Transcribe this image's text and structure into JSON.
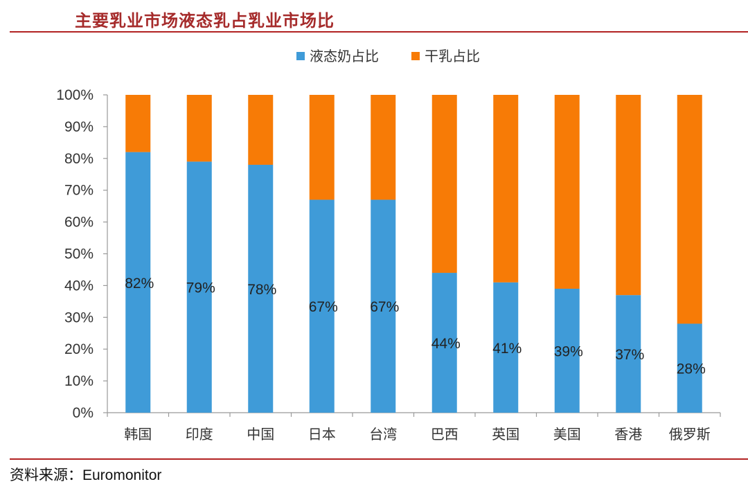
{
  "header": {
    "title": "主要乳业市场液态乳占乳业市场比"
  },
  "footer": {
    "source_label": "资料来源：",
    "source_value": "Euromonitor"
  },
  "colors": {
    "liquid": "#3f9bd8",
    "cheese": "#f77b06",
    "title": "#a52a2a"
  },
  "chart_data": {
    "type": "bar",
    "stacked": true,
    "percent": true,
    "categories": [
      "韩国",
      "印度",
      "中国",
      "日本",
      "台湾",
      "巴西",
      "英国",
      "美国",
      "香港",
      "俄罗斯"
    ],
    "series": [
      {
        "name": "液态奶占比",
        "color": "#3f9bd8",
        "values": [
          82,
          79,
          78,
          67,
          67,
          44,
          41,
          39,
          37,
          28
        ]
      },
      {
        "name": "干乳占比",
        "color": "#f77b06",
        "values": [
          18,
          21,
          22,
          33,
          33,
          56,
          59,
          61,
          63,
          72
        ]
      }
    ],
    "data_labels": [
      "82%",
      "79%",
      "78%",
      "67%",
      "67%",
      "44%",
      "41%",
      "39%",
      "37%",
      "28%"
    ],
    "y_ticks": [
      "0%",
      "10%",
      "20%",
      "30%",
      "40%",
      "50%",
      "60%",
      "70%",
      "80%",
      "90%",
      "100%"
    ],
    "ylim": [
      0,
      100
    ],
    "legend_position": "top-center",
    "grid": false
  }
}
